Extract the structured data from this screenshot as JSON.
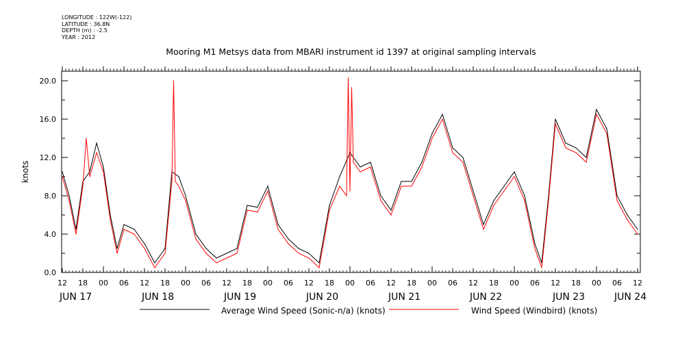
{
  "header": {
    "longitude": "LONGITUDE : 122W(-122)",
    "latitude": "LATITUDE : 36.8N",
    "depth": "DEPTH (m) : -2.5",
    "year": "YEAR : 2012"
  },
  "chart_data": {
    "type": "line",
    "title": "Mooring M1 Metsys data from MBARI instrument id 1397 at original sampling intervals",
    "xlabel": "",
    "ylabel": "knots",
    "ylim": [
      0,
      21
    ],
    "yticks": [
      "0.0",
      "4.0",
      "8.0",
      "12.0",
      "16.0",
      "20.0"
    ],
    "xlim_hours_labels": "JUN 17 12:00 to JUN 24 12:00",
    "hour_tick_labels": [
      "12",
      "18",
      "00",
      "06",
      "12",
      "18",
      "00",
      "06",
      "12",
      "18",
      "00",
      "06",
      "12",
      "18",
      "00",
      "06",
      "12",
      "18",
      "00",
      "06",
      "12",
      "18",
      "00",
      "06",
      "12",
      "18",
      "00",
      "06",
      "12"
    ],
    "day_labels": [
      "JUN 17",
      "JUN 18",
      "JUN 19",
      "JUN 20",
      "JUN 21",
      "JUN 22",
      "JUN 23",
      "JUN 24"
    ],
    "grid": false,
    "legend_position": "bottom",
    "series": [
      {
        "name": "Average Wind Speed (Sonic-n/a) (knots)",
        "color": "#000000",
        "x": [
          "06-17 12:00",
          "06-17 14:00",
          "06-17 16:00",
          "06-17 18:00",
          "06-17 20:00",
          "06-17 22:00",
          "06-18 00:00",
          "06-18 02:00",
          "06-18 04:00",
          "06-18 06:00",
          "06-18 09:00",
          "06-18 12:00",
          "06-18 15:00",
          "06-18 18:00",
          "06-18 20:00",
          "06-18 22:00",
          "06-19 00:00",
          "06-19 03:00",
          "06-19 06:00",
          "06-19 09:00",
          "06-19 12:00",
          "06-19 15:00",
          "06-19 18:00",
          "06-19 21:00",
          "06-20 00:00",
          "06-20 03:00",
          "06-20 06:00",
          "06-20 09:00",
          "06-20 12:00",
          "06-20 15:00",
          "06-20 18:00",
          "06-20 21:00",
          "06-21 00:00",
          "06-21 03:00",
          "06-21 06:00",
          "06-21 09:00",
          "06-21 12:00",
          "06-21 15:00",
          "06-21 18:00",
          "06-21 21:00",
          "06-22 00:00",
          "06-22 03:00",
          "06-22 06:00",
          "06-22 09:00",
          "06-22 12:00",
          "06-22 15:00",
          "06-22 18:00",
          "06-22 21:00",
          "06-23 00:00",
          "06-23 03:00",
          "06-23 06:00",
          "06-23 08:00",
          "06-23 10:00",
          "06-23 12:00",
          "06-23 15:00",
          "06-23 18:00",
          "06-23 21:00",
          "06-24 00:00",
          "06-24 03:00",
          "06-24 06:00",
          "06-24 09:00",
          "06-24 12:00"
        ],
        "values": [
          10.5,
          8.0,
          4.5,
          9.5,
          10.5,
          13.5,
          11.0,
          6.0,
          2.5,
          5.0,
          4.5,
          3.0,
          1.0,
          2.5,
          10.5,
          10.0,
          8.0,
          4.0,
          2.5,
          1.5,
          2.0,
          2.5,
          7.0,
          6.8,
          9.0,
          5.0,
          3.5,
          2.5,
          2.0,
          1.0,
          7.0,
          10.0,
          12.5,
          11.0,
          11.5,
          8.0,
          6.5,
          9.5,
          9.5,
          11.5,
          14.5,
          16.5,
          13.0,
          12.0,
          8.5,
          5.0,
          7.5,
          9.0,
          10.5,
          8.0,
          3.0,
          1.0,
          8.0,
          16.0,
          13.5,
          13.0,
          12.0,
          17.0,
          15.0,
          8.0,
          6.0,
          4.5
        ]
      },
      {
        "name": "Wind Speed (Windbird) (knots)",
        "color": "#ff0000",
        "x": [
          "06-17 12:00",
          "06-17 14:00",
          "06-17 16:00",
          "06-17 18:00",
          "06-17 19:00",
          "06-17 20:00",
          "06-17 22:00",
          "06-18 00:00",
          "06-18 02:00",
          "06-18 04:00",
          "06-18 06:00",
          "06-18 09:00",
          "06-18 12:00",
          "06-18 15:00",
          "06-18 18:00",
          "06-18 20:00",
          "06-18 20:30",
          "06-18 21:00",
          "06-18 22:00",
          "06-19 00:00",
          "06-19 03:00",
          "06-19 06:00",
          "06-19 09:00",
          "06-19 12:00",
          "06-19 15:00",
          "06-19 18:00",
          "06-19 21:00",
          "06-20 00:00",
          "06-20 03:00",
          "06-20 06:00",
          "06-20 09:00",
          "06-20 12:00",
          "06-20 15:00",
          "06-20 18:00",
          "06-20 21:00",
          "06-20 23:00",
          "06-20 23:30",
          "06-21 00:00",
          "06-21 00:30",
          "06-21 01:00",
          "06-21 03:00",
          "06-21 06:00",
          "06-21 09:00",
          "06-21 12:00",
          "06-21 15:00",
          "06-21 18:00",
          "06-21 21:00",
          "06-22 00:00",
          "06-22 03:00",
          "06-22 06:00",
          "06-22 09:00",
          "06-22 12:00",
          "06-22 15:00",
          "06-22 18:00",
          "06-22 21:00",
          "06-23 00:00",
          "06-23 03:00",
          "06-23 06:00",
          "06-23 08:00",
          "06-23 10:00",
          "06-23 12:00",
          "06-23 15:00",
          "06-23 18:00",
          "06-23 21:00",
          "06-24 00:00",
          "06-24 03:00",
          "06-24 06:00",
          "06-24 09:00",
          "06-24 12:00"
        ],
        "values": [
          10.0,
          7.5,
          4.0,
          9.0,
          14.0,
          10.0,
          12.5,
          10.5,
          5.5,
          2.0,
          4.5,
          4.0,
          2.5,
          0.5,
          2.0,
          9.5,
          20.0,
          9.5,
          9.0,
          7.5,
          3.5,
          2.0,
          1.0,
          1.5,
          2.0,
          6.5,
          6.3,
          8.5,
          4.5,
          3.0,
          2.0,
          1.5,
          0.5,
          6.5,
          9.0,
          8.0,
          20.3,
          8.5,
          19.3,
          11.5,
          10.5,
          11.0,
          7.5,
          6.0,
          9.0,
          9.0,
          11.0,
          14.0,
          16.0,
          12.5,
          11.5,
          8.0,
          4.5,
          7.0,
          8.5,
          10.0,
          7.5,
          2.5,
          0.5,
          7.5,
          15.5,
          13.0,
          12.5,
          11.5,
          16.5,
          14.5,
          7.5,
          5.5,
          4.0
        ]
      }
    ]
  }
}
